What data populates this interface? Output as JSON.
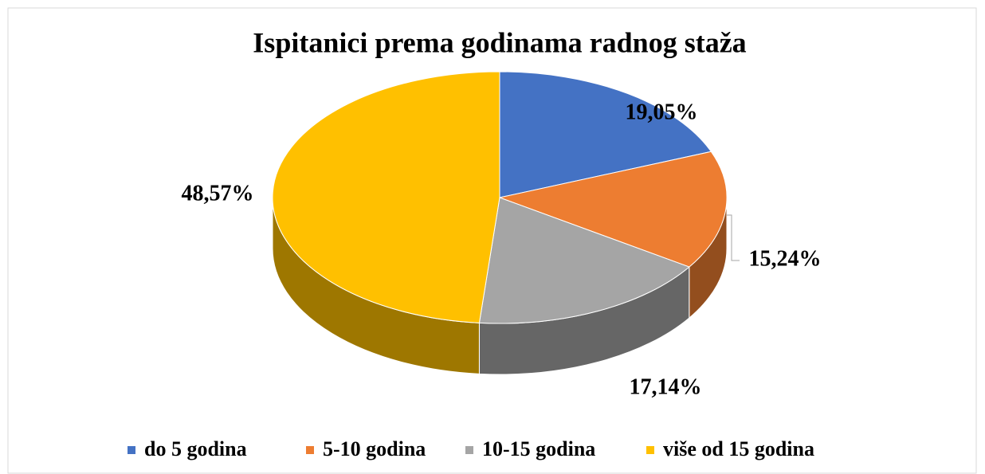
{
  "chart_data": {
    "type": "pie",
    "title": "Ispitanici prema godinama radnog staža",
    "categories": [
      "do 5 godina",
      "5-10 godina",
      "10-15 godina",
      "više od 15 godina"
    ],
    "values": [
      19.05,
      15.24,
      17.14,
      48.57
    ],
    "value_labels": [
      "19,05%",
      "15,24%",
      "17,14%",
      "48,57%"
    ],
    "colors": [
      "#4472c4",
      "#ed7d31",
      "#a5a5a5",
      "#ffc000"
    ],
    "legend": "bottom"
  }
}
